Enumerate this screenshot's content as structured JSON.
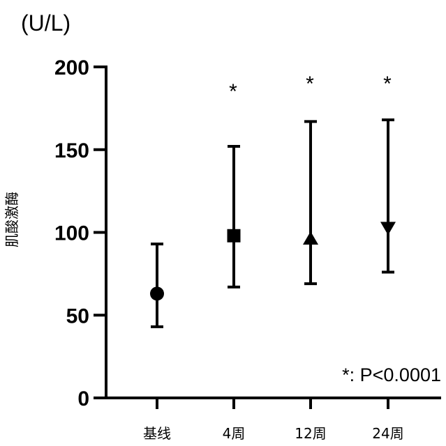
{
  "chart_data": {
    "type": "scatter",
    "unit_label": "(U/L)",
    "ylabel": "肌酸激酶",
    "ylim": [
      0,
      200
    ],
    "y_ticks": [
      0,
      50,
      100,
      150,
      200
    ],
    "categories": [
      "基线",
      "4周",
      "12周",
      "24周"
    ],
    "points": [
      {
        "category": "基线",
        "value": 63,
        "lower": 43,
        "upper": 93,
        "marker": "circle",
        "significance": ""
      },
      {
        "category": "4周",
        "value": 98,
        "lower": 67,
        "upper": 152,
        "marker": "square",
        "significance": "*"
      },
      {
        "category": "12周",
        "value": 96,
        "lower": 69,
        "upper": 167,
        "marker": "triangle-up",
        "significance": "*"
      },
      {
        "category": "24周",
        "value": 103,
        "lower": 76,
        "upper": 168,
        "marker": "triangle-down",
        "significance": "*"
      }
    ],
    "annotation": "*: P<0.0001",
    "grid": false
  }
}
